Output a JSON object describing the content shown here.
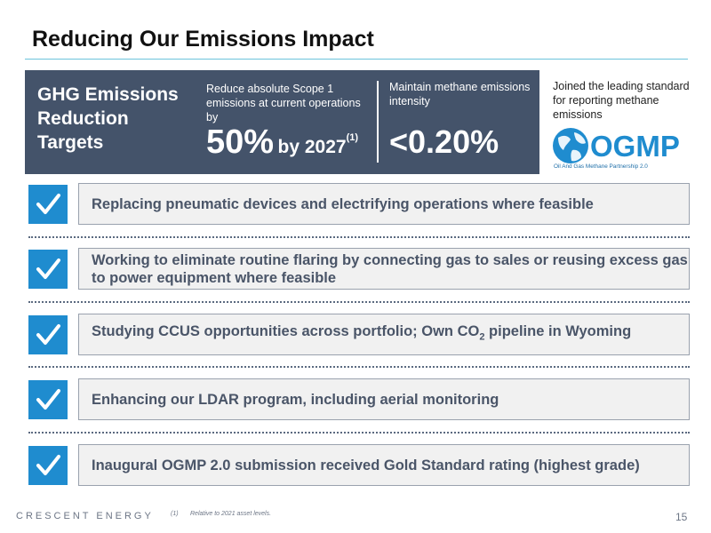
{
  "page": {
    "title": "Reducing Our Emissions Impact",
    "page_number": "15"
  },
  "targets": {
    "heading": "GHG Emissions Reduction Targets",
    "scope1_description": "Reduce absolute Scope 1 emissions at current operations by",
    "scope1_value": "50%",
    "scope1_year": "by 2027",
    "scope1_footnote": "(1)",
    "methane_description": "Maintain methane emissions intensity",
    "methane_value": "<0.20%"
  },
  "ogmp": {
    "text": "Joined the leading standard for reporting methane emissions",
    "logo_text": "OGMP",
    "logo_subtitle": "Oil And Gas Methane Partnership 2.0"
  },
  "actions": [
    {
      "label": "Replacing pneumatic devices and electrifying operations where feasible",
      "checked": true
    },
    {
      "label": "Working to eliminate routine flaring by connecting gas to sales or reusing excess gas to power equipment where feasible",
      "checked": true
    },
    {
      "label_prefix": "Studying CCUS opportunities across portfolio; Own CO",
      "label_subscript": "2",
      "label_suffix": " pipeline in Wyoming",
      "checked": true
    },
    {
      "label": "Enhancing our LDAR program, including aerial monitoring",
      "checked": true
    },
    {
      "label": "Inaugural OGMP 2.0 submission received Gold Standard rating (highest grade)",
      "checked": true
    }
  ],
  "footer": {
    "brand": "CRESCENT ENERGY",
    "footnote_mark": "(1)",
    "footnote_text": "Relative to 2021 asset levels."
  },
  "colors": {
    "panel": "#44536a",
    "check": "#1f8ccf",
    "accent_rule": "#6cc4dc"
  }
}
